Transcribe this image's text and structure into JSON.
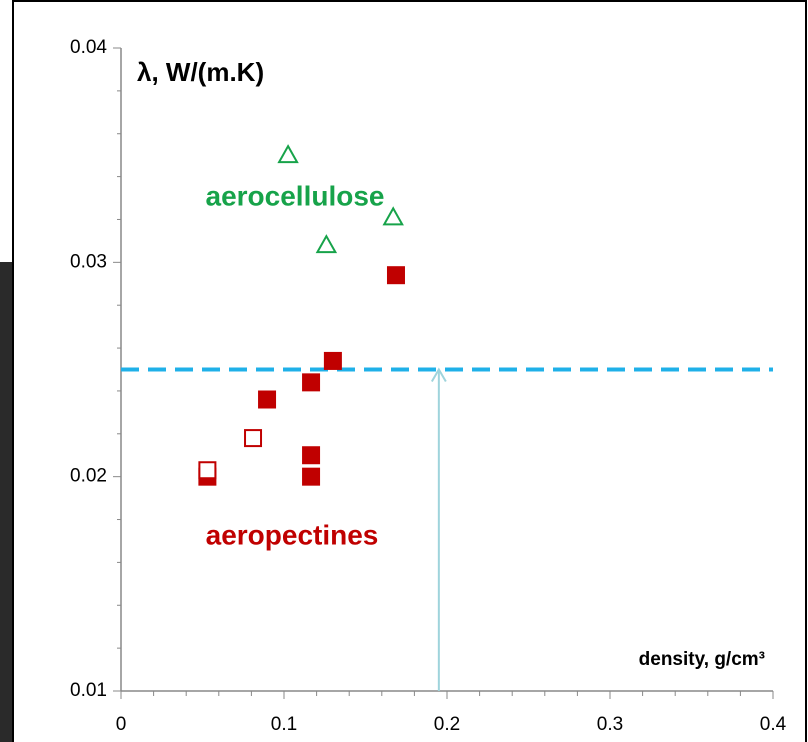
{
  "chart_data": {
    "type": "scatter",
    "y_label": "λ, W/(m.K)",
    "x_label": "density, g/cm³",
    "xlim": [
      0,
      0.4
    ],
    "xticks": [
      0,
      0.1,
      0.2,
      0.3,
      0.4
    ],
    "xminorticks": [
      0.02,
      0.04,
      0.06,
      0.08,
      0.12,
      0.14,
      0.16,
      0.18,
      0.22,
      0.24,
      0.26,
      0.28,
      0.32,
      0.34,
      0.36,
      0.38
    ],
    "ylim": [
      0.01,
      0.04
    ],
    "yticks": [
      0.01,
      0.02,
      0.03,
      0.04
    ],
    "yminorticks": [
      0.012,
      0.014,
      0.016,
      0.018,
      0.022,
      0.024,
      0.026,
      0.028,
      0.032,
      0.034,
      0.036,
      0.038
    ],
    "reference_line": {
      "y": 0.025,
      "color": "#1fb0e8"
    },
    "arrow": {
      "x": 0.195,
      "y_from": 0.01,
      "y_to": 0.025,
      "color": "#9fd4dc"
    },
    "series": [
      {
        "name": "aerocellulose",
        "color": "#17a34a",
        "marker": "triangle",
        "filled": false,
        "x": [
          0.1025,
          0.126,
          0.167
        ],
        "values": [
          0.035,
          0.0308,
          0.0321
        ]
      },
      {
        "name": "aeropectines",
        "color": "#c00000",
        "marker": "square",
        "filled": true,
        "x": [
          0.053,
          0.0896,
          0.1166,
          0.1166,
          0.1166,
          0.13,
          0.1687
        ],
        "values": [
          0.02,
          0.0236,
          0.0244,
          0.021,
          0.02,
          0.0254,
          0.0294
        ]
      },
      {
        "color": "#c00000",
        "marker": "square",
        "filled": false,
        "x": [
          0.053,
          0.081
        ],
        "values": [
          0.0203,
          0.0218
        ]
      }
    ]
  }
}
